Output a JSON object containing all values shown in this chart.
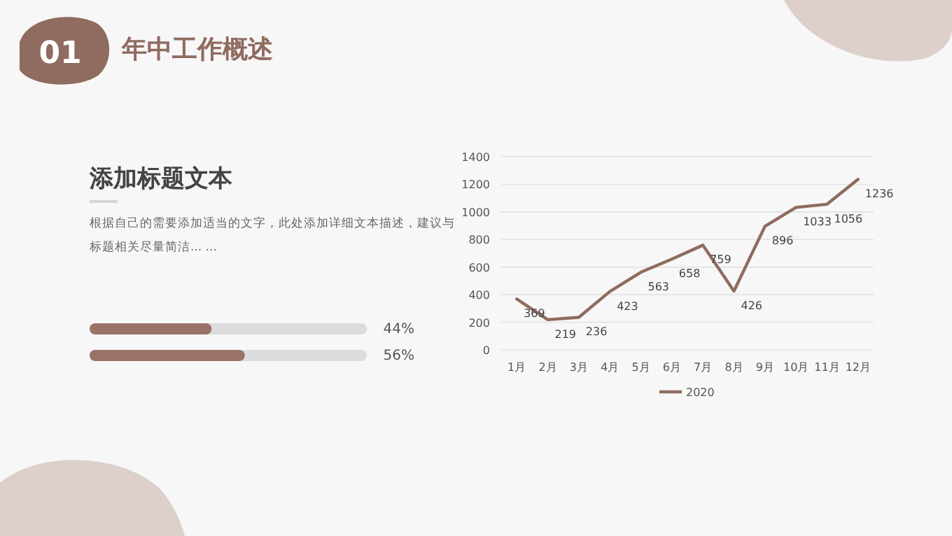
{
  "chart_data": [
    {
      "type": "bar",
      "orientation": "horizontal",
      "title": "添加标题文本",
      "subtitle": "根据自己的需要添加适当的文字，此处添加详细文本描述，建议与标题相关尽量简洁... ...",
      "annotations": [
        "01",
        "年中工作概述"
      ],
      "categories": [
        null,
        null
      ],
      "values": [
        44,
        56
      ],
      "value_labels": [
        "44%",
        "56%"
      ],
      "color": "#9a7366",
      "xlim": [
        0,
        100
      ]
    },
    {
      "type": "line",
      "categories": [
        "1月",
        "2月",
        "3月",
        "4月",
        "5月",
        "6月",
        "7月",
        "8月",
        "9月",
        "10月",
        "11月",
        "12月"
      ],
      "series": [
        {
          "name": "2020",
          "color": "#8f6b60",
          "values": [
            369,
            219,
            236,
            423,
            563,
            658,
            759,
            426,
            896,
            1033,
            1056,
            1236
          ]
        }
      ],
      "ylim": [
        0,
        1400
      ],
      "yticks": [
        0,
        200,
        400,
        600,
        800,
        1000,
        1200,
        1400
      ],
      "grid": "y",
      "legend": "bottom",
      "data_labels": true
    }
  ]
}
